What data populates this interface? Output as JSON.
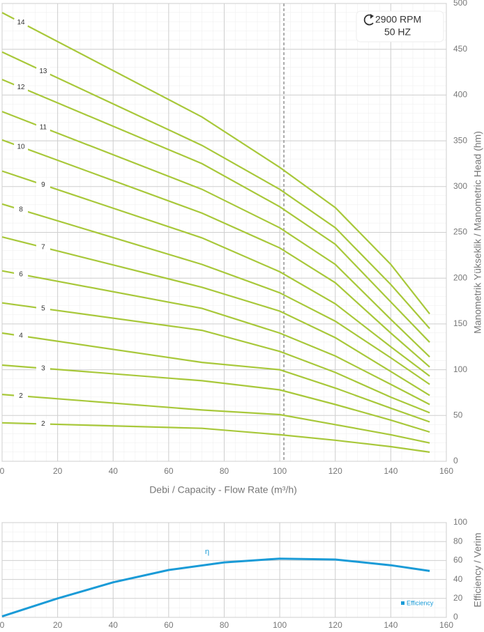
{
  "chart_data": [
    {
      "type": "line",
      "annotations": [
        "2900 RPM",
        "50 HZ"
      ],
      "x_label": "Debi / Capacity  - Flow Rate (m³/h)",
      "y_label": "Manometrik Yükseklik / Manometric Head (hm)",
      "xlim": [
        0,
        160
      ],
      "xticks": [
        0,
        20,
        40,
        60,
        80,
        100,
        120,
        140,
        160
      ],
      "ylim": [
        0,
        500
      ],
      "yticks": [
        0,
        50,
        100,
        150,
        200,
        250,
        300,
        350,
        400,
        450,
        500
      ],
      "grid": true,
      "vline": 101.5,
      "x": [
        0,
        72,
        100,
        120,
        140,
        154
      ],
      "series": [
        {
          "name": "14",
          "color": "#a8c83a",
          "values": [
            490,
            376,
            321,
            277,
            215,
            161
          ]
        },
        {
          "name": "13",
          "color": "#a8c83a",
          "values": [
            447,
            345,
            297,
            255,
            193,
            145
          ]
        },
        {
          "name": "12",
          "color": "#a8c83a",
          "values": [
            417,
            325,
            278,
            237,
            174,
            130
          ]
        },
        {
          "name": "11",
          "color": "#a8c83a",
          "values": [
            382,
            297,
            255,
            215,
            155,
            114
          ]
        },
        {
          "name": "10",
          "color": "#a8c83a",
          "values": [
            351,
            271,
            233,
            195,
            140,
            103
          ]
        },
        {
          "name": "9",
          "color": "#a8c83a",
          "values": [
            317,
            244,
            207,
            172,
            125,
            93
          ]
        },
        {
          "name": "8",
          "color": "#a8c83a",
          "values": [
            281,
            215,
            184,
            153,
            113,
            84
          ]
        },
        {
          "name": "7",
          "color": "#a8c83a",
          "values": [
            245,
            190,
            164,
            135,
            98,
            72
          ]
        },
        {
          "name": "6",
          "color": "#a8c83a",
          "values": [
            208,
            167,
            140,
            115,
            84,
            62
          ]
        },
        {
          "name": "5",
          "color": "#a8c83a",
          "values": [
            173,
            143,
            120,
            97,
            70,
            53
          ]
        },
        {
          "name": "4",
          "color": "#a8c83a",
          "values": [
            140,
            108,
            100,
            80,
            58,
            43
          ]
        },
        {
          "name": "3",
          "color": "#a8c83a",
          "values": [
            105,
            88,
            78,
            62,
            45,
            32
          ]
        },
        {
          "name": "2",
          "color": "#a8c83a",
          "values": [
            73,
            56,
            51,
            40,
            29,
            20
          ]
        },
        {
          "name": "2",
          "color": "#a8c83a",
          "values": [
            42,
            36,
            29,
            23,
            16,
            10
          ]
        }
      ]
    },
    {
      "type": "line",
      "y_label": "Efficiency / Verim",
      "curve_label": "η",
      "xlim": [
        0,
        160
      ],
      "xticks": [
        0,
        20,
        40,
        60,
        80,
        100,
        120,
        140,
        160
      ],
      "ylim": [
        0,
        100
      ],
      "yticks": [
        0,
        20,
        40,
        60,
        80,
        100
      ],
      "grid": true,
      "legend": "lower right",
      "x": [
        0,
        20,
        40,
        60,
        80,
        100,
        120,
        140,
        154
      ],
      "series": [
        {
          "name": "Efficiency",
          "color": "#1a9bd7",
          "values": [
            1,
            20,
            37,
            50,
            58,
            62,
            61,
            55,
            49
          ]
        }
      ]
    }
  ]
}
